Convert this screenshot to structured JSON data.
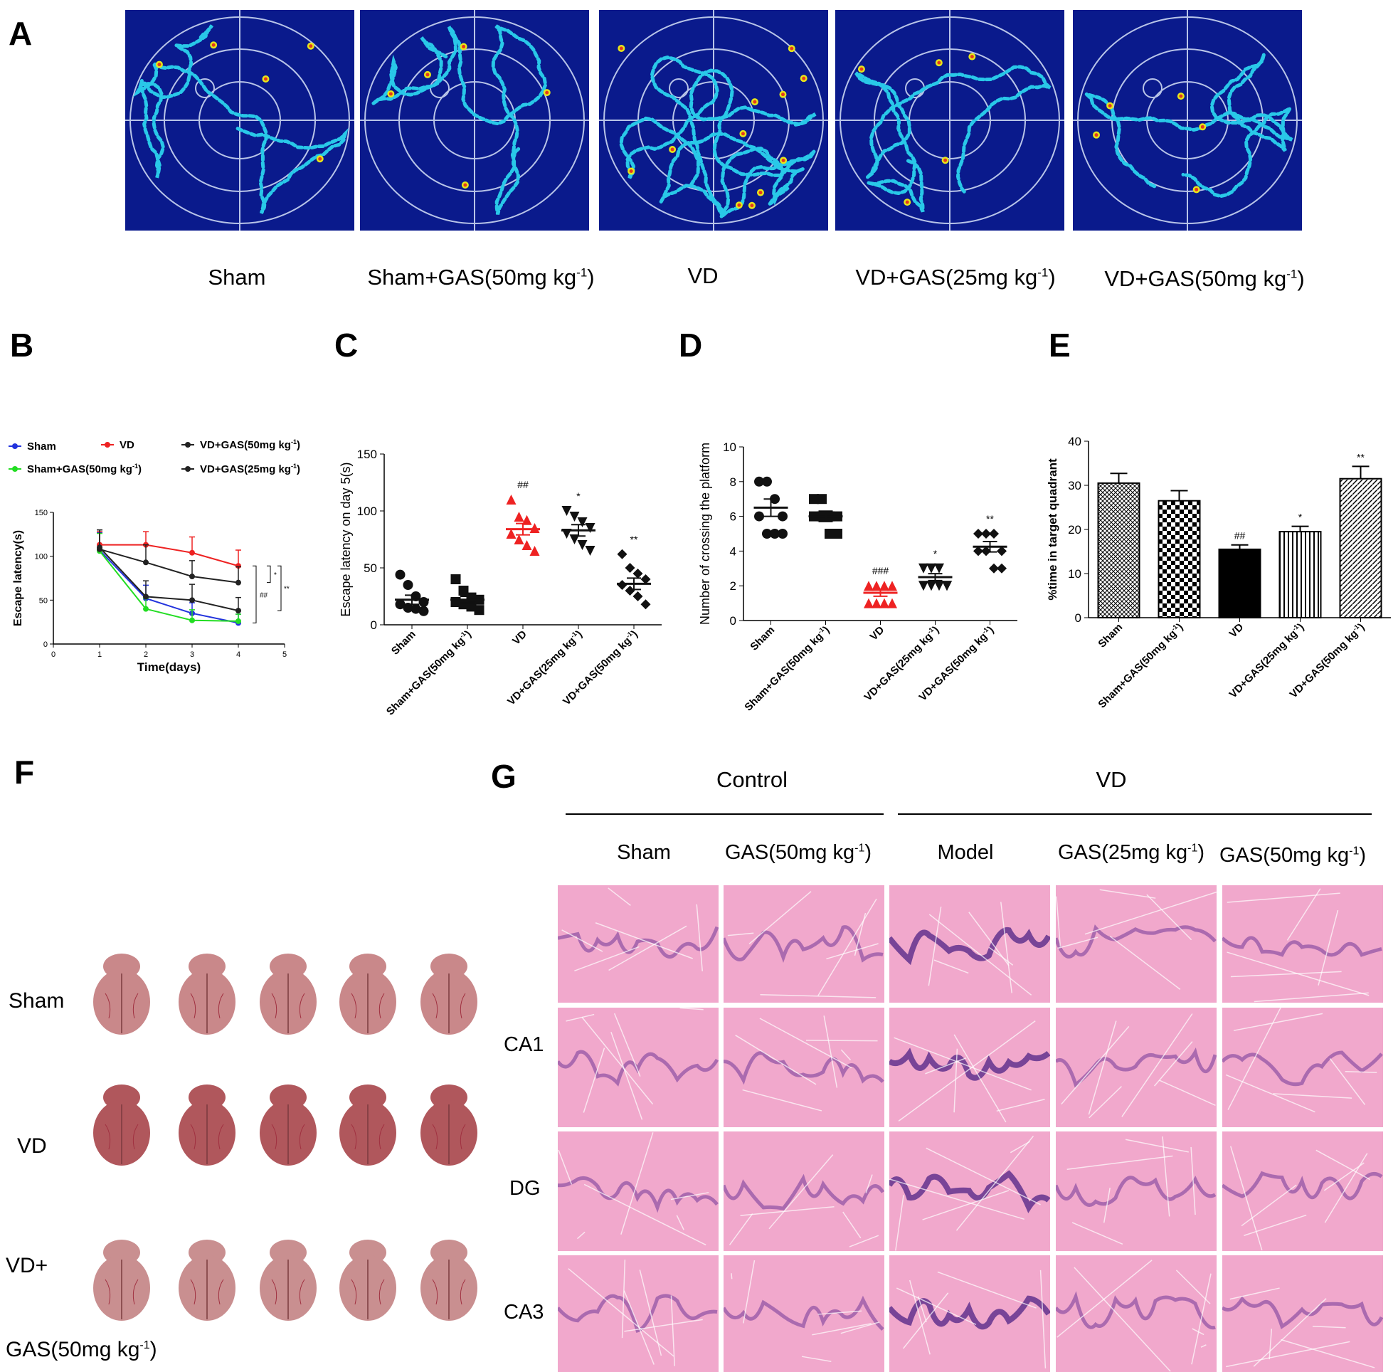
{
  "panel_letters": {
    "A": "A",
    "B": "B",
    "C": "C",
    "D": "D",
    "E": "E",
    "F": "F",
    "G": "G"
  },
  "panelA": {
    "captions": [
      "Sham",
      "Sham+GAS(50mg kg",
      "VD",
      "VD+GAS(25mg kg",
      "VD+GAS(50mg kg"
    ],
    "sup": "-1",
    "close": ")",
    "colors": {
      "bg": "#0a1a8c",
      "path": "#29c8e8",
      "hot": "#e6e61a",
      "hotter": "#e63a1a",
      "ring": "#b8c4e8"
    }
  },
  "chart_data": [
    {
      "panel": "B",
      "type": "line",
      "xlabel": "Time(days)",
      "ylabel": "Escape latency(s)",
      "xlim": [
        0,
        5
      ],
      "ylim": [
        0,
        150
      ],
      "xticks": [
        "0",
        "1",
        "2",
        "3",
        "4",
        "5"
      ],
      "yticks": [
        "0",
        "50",
        "100",
        "150"
      ],
      "x": [
        1,
        2,
        3,
        4
      ],
      "legend": [
        "Sham",
        "VD",
        "VD+GAS(50mg kg",
        "Sham+GAS(50mg kg",
        "VD+GAS(25mg kg"
      ],
      "series": [
        {
          "name": "Sham",
          "color": "#2233dd",
          "values": [
            107,
            52,
            35,
            24
          ],
          "err": [
            20,
            15,
            12,
            10
          ]
        },
        {
          "name": "Sham+GAS(50mg kg-1)",
          "color": "#22dd22",
          "values": [
            106,
            40,
            27,
            26
          ],
          "err": [
            20,
            12,
            12,
            8
          ]
        },
        {
          "name": "VD",
          "color": "#ee2222",
          "values": [
            113,
            113,
            104,
            89
          ],
          "err": [
            15,
            15,
            18,
            18
          ]
        },
        {
          "name": "VD+GAS(50mg kg-1)",
          "color": "#222222",
          "values": [
            108,
            93,
            77,
            70
          ],
          "err": [
            22,
            20,
            18,
            18
          ]
        },
        {
          "name": "VD+GAS(25mg kg-1)",
          "color": "#222222",
          "values": [
            110,
            54,
            50,
            38
          ],
          "err": [
            20,
            18,
            18,
            15
          ]
        }
      ],
      "annotations": [
        "##",
        "*",
        "**"
      ]
    },
    {
      "panel": "C",
      "type": "scatter",
      "ylabel": "Escape latency on day 5(s)",
      "ylim": [
        0,
        150
      ],
      "yticks": [
        "0",
        "50",
        "100",
        "150"
      ],
      "categories": [
        "Sham",
        "Sham+GAS(50mg kg",
        "VD",
        "VD+GAS(25mg kg",
        "VD+GAS(50mg kg"
      ],
      "points": [
        [
          44,
          35,
          25,
          20,
          18,
          15,
          14,
          12
        ],
        [
          40,
          30,
          24,
          22,
          20,
          18,
          16,
          13
        ],
        [
          110,
          95,
          92,
          85,
          80,
          75,
          70,
          65
        ],
        [
          100,
          95,
          90,
          85,
          80,
          75,
          70,
          65
        ],
        [
          62,
          50,
          45,
          40,
          35,
          30,
          25,
          18
        ]
      ],
      "means": [
        22,
        22,
        84,
        83,
        36
      ],
      "sem": [
        4,
        3,
        5,
        5,
        5
      ],
      "colors": [
        "#111111",
        "#111111",
        "#ee2222",
        "#111111",
        "#111111"
      ],
      "markers": [
        "circle",
        "square",
        "triangle",
        "triangle-down",
        "diamond"
      ],
      "stars": [
        "",
        "",
        "##",
        "*",
        "**"
      ]
    },
    {
      "panel": "D",
      "type": "scatter",
      "ylabel": "Number of crossing the platform",
      "ylim": [
        0,
        10
      ],
      "yticks": [
        "0",
        "2",
        "4",
        "6",
        "8",
        "10"
      ],
      "categories": [
        "Sham",
        "Sham+GAS(50mg kg",
        "VD",
        "VD+GAS(25mg kg",
        "VD+GAS(50mg kg"
      ],
      "points": [
        [
          8,
          8,
          7,
          6,
          6,
          5,
          5,
          5
        ],
        [
          7,
          7,
          6,
          6,
          6,
          6,
          5,
          5
        ],
        [
          2,
          2,
          2,
          2,
          1,
          1,
          1,
          1
        ],
        [
          3,
          3,
          3,
          2,
          2,
          2,
          2,
          2
        ],
        [
          5,
          5,
          5,
          4,
          4,
          4,
          3,
          3
        ]
      ],
      "means": [
        6.5,
        6,
        1.6,
        2.5,
        4.25
      ],
      "sem": [
        0.5,
        0.3,
        0.2,
        0.2,
        0.3
      ],
      "colors": [
        "#111111",
        "#111111",
        "#ee2222",
        "#111111",
        "#111111"
      ],
      "markers": [
        "circle",
        "square",
        "triangle",
        "triangle-down",
        "diamond"
      ],
      "stars": [
        "",
        "",
        "###",
        "*",
        "**"
      ]
    },
    {
      "panel": "E",
      "type": "bar",
      "ylabel": "%time in target quadrant",
      "ylim": [
        0,
        40
      ],
      "yticks": [
        "0",
        "10",
        "20",
        "30",
        "40"
      ],
      "categories": [
        "Sham",
        "Sham+GAS(50mg kg",
        "VD",
        "VD+GAS(25mg kg",
        "VD+GAS(50mg kg"
      ],
      "values": [
        30.5,
        26.5,
        15.5,
        19.5,
        31.5
      ],
      "err": [
        2.2,
        2.3,
        1.0,
        1.2,
        2.8
      ],
      "stars": [
        "",
        "",
        "##",
        "*",
        "**"
      ]
    }
  ],
  "sup": "-1",
  "close": ")",
  "panelF": {
    "rows": [
      "Sham",
      "VD",
      "VD+",
      "GAS(50mg kg"
    ],
    "sup": "-1",
    "close": ")"
  },
  "panelG": {
    "groups": [
      "Control",
      "VD"
    ],
    "cols": [
      "Sham",
      "GAS(50mg kg",
      "Model",
      "GAS(25mg kg",
      "GAS(50mg kg"
    ],
    "rows": [
      "CA1",
      "DG",
      "CA3"
    ],
    "sup": "-1",
    "close": ")"
  }
}
